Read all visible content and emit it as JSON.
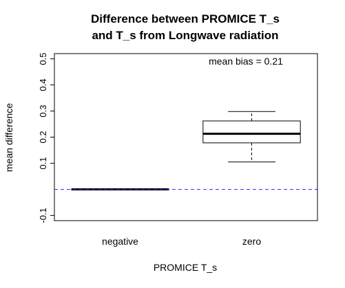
{
  "chart_data": {
    "type": "boxplot",
    "title_lines": [
      "Difference between PROMICE T_s",
      "and T_s from Longwave radiation"
    ],
    "xlabel": "PROMICE T_s",
    "ylabel": "mean difference",
    "categories": [
      "negative",
      "zero"
    ],
    "ylim": [
      -0.12,
      0.52
    ],
    "y_ticks": [
      -0.1,
      0.1,
      0.2,
      0.3,
      0.4,
      0.5
    ],
    "y_tick_labels": [
      "-0.1",
      "0.1",
      "0.2",
      "0.3",
      "0.4",
      "0.5"
    ],
    "boxes": [
      {
        "category": "negative",
        "whisker_low": 0.0,
        "q1": 0.0,
        "median": 0.0,
        "q3": 0.0,
        "whisker_high": 0.0
      },
      {
        "category": "zero",
        "whisker_low": 0.105,
        "q1": 0.178,
        "median": 0.213,
        "q3": 0.262,
        "whisker_high": 0.298
      }
    ],
    "reference_line": {
      "y": 0.0,
      "style": "dashed",
      "color": "#3333ff"
    },
    "annotation": "mean bias = 0.21",
    "annotation_position": "top-right"
  }
}
